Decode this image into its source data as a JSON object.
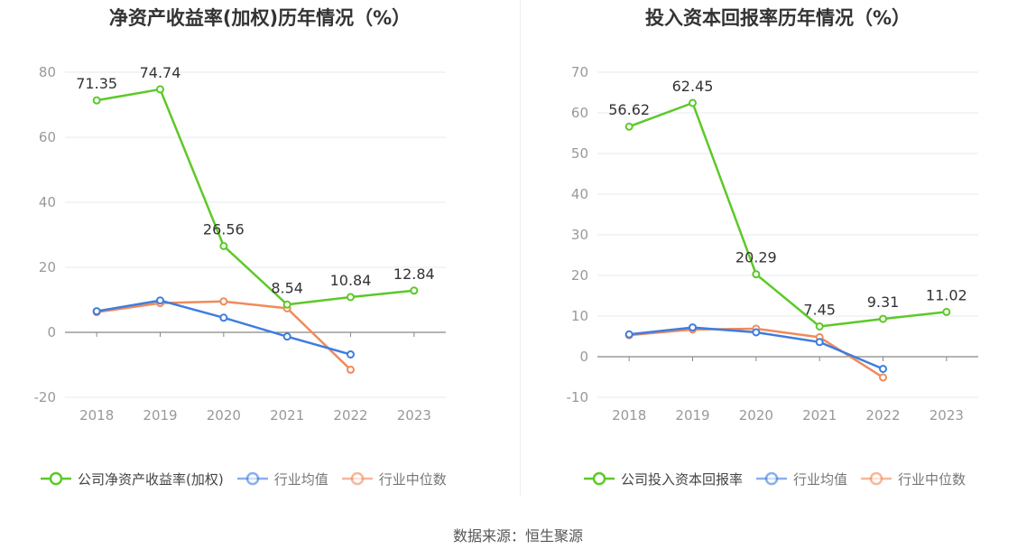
{
  "source": "数据来源：恒生聚源",
  "chart_data": [
    {
      "type": "line",
      "title": "净资产收益率(加权)历年情况（%）",
      "categories": [
        "2018",
        "2019",
        "2020",
        "2021",
        "2022",
        "2023"
      ],
      "ylim": [
        -20,
        80
      ],
      "yticks": [
        "80",
        "60",
        "40",
        "20",
        "0",
        "-20"
      ],
      "grid": true,
      "legend_position": "bottom",
      "series": [
        {
          "name": "公司净资产收益率(加权)",
          "color": "#5cc928",
          "values": [
            71.35,
            74.74,
            26.56,
            8.54,
            10.84,
            12.84
          ],
          "labels": [
            "71.35",
            "74.74",
            "26.56",
            "8.54",
            "10.84",
            "12.84"
          ]
        },
        {
          "name": "行业均值",
          "color": "#3d7de0",
          "values": [
            6.5,
            9.8,
            4.5,
            -1.3,
            -6.8,
            null
          ]
        },
        {
          "name": "行业中位数",
          "color": "#f08a5a",
          "values": [
            6.2,
            9.0,
            9.5,
            7.4,
            -11.5,
            null
          ]
        }
      ]
    },
    {
      "type": "line",
      "title": "投入资本回报率历年情况（%）",
      "categories": [
        "2018",
        "2019",
        "2020",
        "2021",
        "2022",
        "2023"
      ],
      "ylim": [
        -10,
        70
      ],
      "yticks": [
        "70",
        "60",
        "50",
        "40",
        "30",
        "20",
        "10",
        "0",
        "-10"
      ],
      "grid": true,
      "legend_position": "bottom",
      "series": [
        {
          "name": "公司投入资本回报率",
          "color": "#5cc928",
          "values": [
            56.62,
            62.45,
            20.29,
            7.45,
            9.31,
            11.02
          ],
          "labels": [
            "56.62",
            "62.45",
            "20.29",
            "7.45",
            "9.31",
            "11.02"
          ]
        },
        {
          "name": "行业均值",
          "color": "#3d7de0",
          "values": [
            5.5,
            7.2,
            6.0,
            3.6,
            -3.0,
            null
          ]
        },
        {
          "name": "行业中位数",
          "color": "#f08a5a",
          "values": [
            5.3,
            6.7,
            6.9,
            4.8,
            -5.1,
            null
          ]
        }
      ]
    }
  ]
}
